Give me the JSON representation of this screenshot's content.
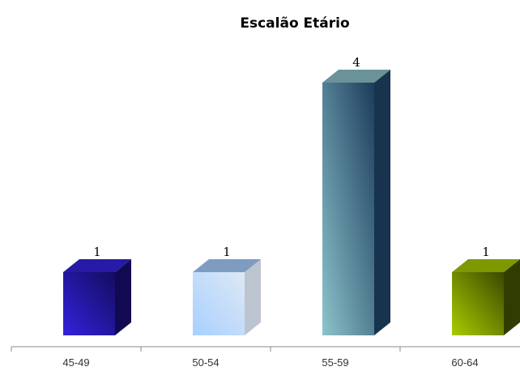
{
  "chart_data": {
    "type": "bar",
    "title": "Escalão Etário",
    "xlabel": "",
    "ylabel": "",
    "categories": [
      "45-49",
      "50-54",
      "55-59",
      "60-64"
    ],
    "values": [
      1,
      1,
      4,
      1
    ],
    "data_labels": [
      "1",
      "1",
      "4",
      "1"
    ],
    "ylim": [
      0,
      4
    ],
    "grid": false,
    "legend": "none",
    "bar_colors": [
      {
        "light": "#3322dd",
        "dark": "#140c60"
      },
      {
        "light": "#a8d0ff",
        "dark": "#dde8f4"
      },
      {
        "light": "#8cc4cc",
        "dark": "#1c3c5c"
      },
      {
        "light": "#a8cc00",
        "dark": "#3a4800"
      }
    ]
  }
}
